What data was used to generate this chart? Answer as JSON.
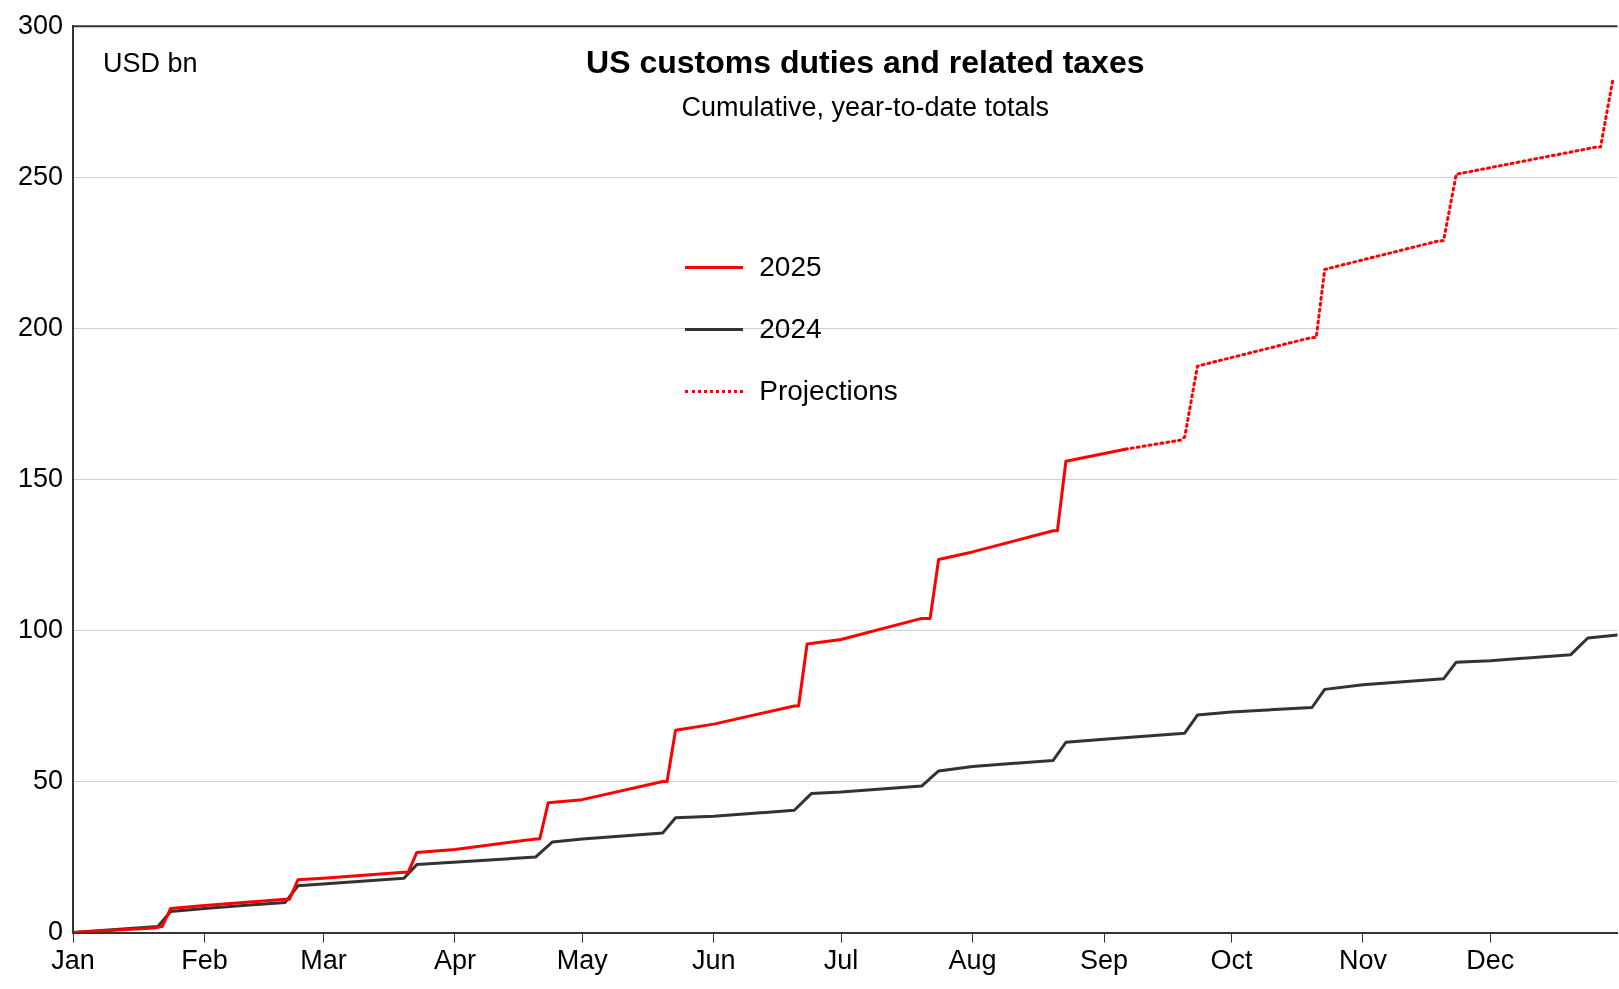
{
  "chart_data": {
    "type": "line",
    "title": "US customs duties and related taxes",
    "subtitle": "Cumulative, year-to-date totals",
    "ylabel": "USD bn",
    "xlim": [
      "--01-01",
      "--12-31"
    ],
    "xticks": [
      {
        "value": "--01-01",
        "label": "Jan"
      },
      {
        "value": "--02-01",
        "label": "Feb"
      },
      {
        "value": "--03-01",
        "label": "Mar"
      },
      {
        "value": "--04-01",
        "label": "Apr"
      },
      {
        "value": "--05-01",
        "label": "May"
      },
      {
        "value": "--06-01",
        "label": "Jun"
      },
      {
        "value": "--07-01",
        "label": "Jul"
      },
      {
        "value": "--08-01",
        "label": "Aug"
      },
      {
        "value": "--09-01",
        "label": "Sep"
      },
      {
        "value": "--10-01",
        "label": "Oct"
      },
      {
        "value": "--11-01",
        "label": "Nov"
      },
      {
        "value": "--12-01",
        "label": "Dec"
      }
    ],
    "ylim": [
      0,
      300
    ],
    "yticks": [
      0,
      50,
      100,
      150,
      200,
      250,
      300
    ],
    "grid": "y",
    "legend": "top",
    "marker": "none",
    "series": [
      {
        "name": "2025",
        "color": "#ff0000",
        "line_style": "solid",
        "x": [
          "--01-01",
          "--01-20",
          "--01-22",
          "--01-24",
          "--02-01",
          "--02-20",
          "--02-21",
          "--02-23",
          "--03-01",
          "--03-20",
          "--03-21",
          "--03-23",
          "--04-01",
          "--04-20",
          "--04-21",
          "--04-23",
          "--05-01",
          "--05-20",
          "--05-21",
          "--05-23",
          "--06-01",
          "--06-20",
          "--06-21",
          "--06-23",
          "--07-01",
          "--07-20",
          "--07-22",
          "--07-24",
          "--08-01",
          "--08-20",
          "--08-21",
          "--08-23",
          "--09-06"
        ],
        "values": [
          0,
          1.5,
          2,
          8,
          9,
          11,
          11,
          17.5,
          18,
          20,
          20,
          26.5,
          27.5,
          31,
          31,
          43,
          44,
          50,
          50,
          67,
          69,
          75,
          75,
          95.5,
          97,
          104,
          104,
          123.5,
          126,
          133,
          133,
          156,
          160
        ]
      },
      {
        "name": "2024",
        "color": "#333333",
        "line_style": "solid",
        "x": [
          "--01-01",
          "--01-21",
          "--01-24",
          "--02-01",
          "--02-20",
          "--02-23",
          "--03-20",
          "--03-23",
          "--04-20",
          "--04-24",
          "--05-01",
          "--05-20",
          "--05-23",
          "--06-01",
          "--06-20",
          "--06-24",
          "--07-01",
          "--07-20",
          "--07-24",
          "--08-01",
          "--08-20",
          "--08-23",
          "--09-01",
          "--09-20",
          "--09-23",
          "--10-01",
          "--10-20",
          "--10-23",
          "--11-01",
          "--11-20",
          "--11-23",
          "--12-01",
          "--12-20",
          "--12-24",
          "--12-31"
        ],
        "values": [
          0,
          2,
          7,
          8,
          10,
          15.5,
          18,
          22.5,
          25,
          30,
          31,
          33,
          38,
          38.5,
          40.5,
          46,
          46.5,
          48.5,
          53.5,
          55,
          57,
          63,
          64,
          66,
          72,
          73,
          74.5,
          80.5,
          82,
          84,
          89.5,
          90,
          92,
          97.5,
          98.5
        ]
      },
      {
        "name": "Projections",
        "color": "#ff0000",
        "line_style": "dotted",
        "x": [
          "--09-06",
          "--09-19",
          "--09-20",
          "--09-23",
          "--10-20",
          "--10-21",
          "--10-23",
          "--11-19",
          "--11-20",
          "--11-23",
          "--12-26",
          "--12-27",
          "--12-30"
        ],
        "values": [
          160,
          163,
          164,
          187.5,
          197,
          197,
          219.5,
          229,
          229,
          251,
          260,
          260,
          283
        ]
      }
    ]
  }
}
